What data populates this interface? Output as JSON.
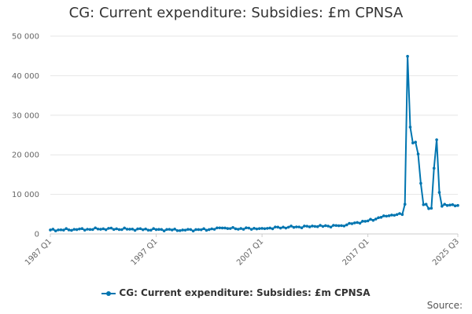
{
  "chart_data": {
    "type": "line",
    "title": "CG: Current expenditure: Subsidies: £m CPNSA",
    "xlabel": "",
    "ylabel": "",
    "ylim": [
      0,
      50000
    ],
    "yticks": [
      0,
      10000,
      20000,
      30000,
      40000,
      50000
    ],
    "ytick_labels": [
      "0",
      "10 000",
      "20 000",
      "30 000",
      "40 000",
      "50 000"
    ],
    "x_start": "1987 Q1",
    "x_end": "2025 Q3",
    "n_points": 155,
    "xtick_labels": [
      {
        "label": "1987 Q1",
        "index": 0
      },
      {
        "label": "1997 Q1",
        "index": 40
      },
      {
        "label": "2007 Q1",
        "index": 80
      },
      {
        "label": "2017 Q1",
        "index": 120
      },
      {
        "label": "2025 Q3",
        "index": 154
      }
    ],
    "series": [
      {
        "name": "CG: Current expenditure: Subsidies: £m CPNSA",
        "color": "#0075b0",
        "anchors": [
          [
            0,
            1000
          ],
          [
            10,
            1100
          ],
          [
            20,
            1300
          ],
          [
            30,
            1200
          ],
          [
            40,
            1100
          ],
          [
            50,
            1000
          ],
          [
            60,
            1100
          ],
          [
            65,
            1500
          ],
          [
            70,
            1300
          ],
          [
            80,
            1400
          ],
          [
            90,
            1700
          ],
          [
            100,
            1900
          ],
          [
            110,
            2100
          ],
          [
            115,
            2800
          ],
          [
            120,
            3300
          ],
          [
            125,
            4200
          ],
          [
            128,
            4600
          ],
          [
            131,
            4900
          ],
          [
            133,
            4900
          ],
          [
            134,
            7500
          ],
          [
            135,
            44900
          ],
          [
            136,
            27000
          ],
          [
            137,
            23000
          ],
          [
            138,
            23200
          ],
          [
            139,
            20200
          ],
          [
            140,
            12800
          ],
          [
            141,
            7400
          ],
          [
            142,
            7500
          ],
          [
            143,
            6400
          ],
          [
            144,
            6500
          ],
          [
            145,
            16600
          ],
          [
            146,
            23800
          ],
          [
            147,
            10500
          ],
          [
            148,
            7000
          ],
          [
            149,
            7500
          ],
          [
            150,
            7200
          ],
          [
            151,
            7300
          ],
          [
            152,
            7400
          ],
          [
            153,
            7100
          ],
          [
            154,
            7200
          ]
        ]
      }
    ]
  },
  "legend": {
    "label": "CG: Current expenditure: Subsidies: £m CPNSA"
  },
  "source": {
    "label": "Source:"
  }
}
